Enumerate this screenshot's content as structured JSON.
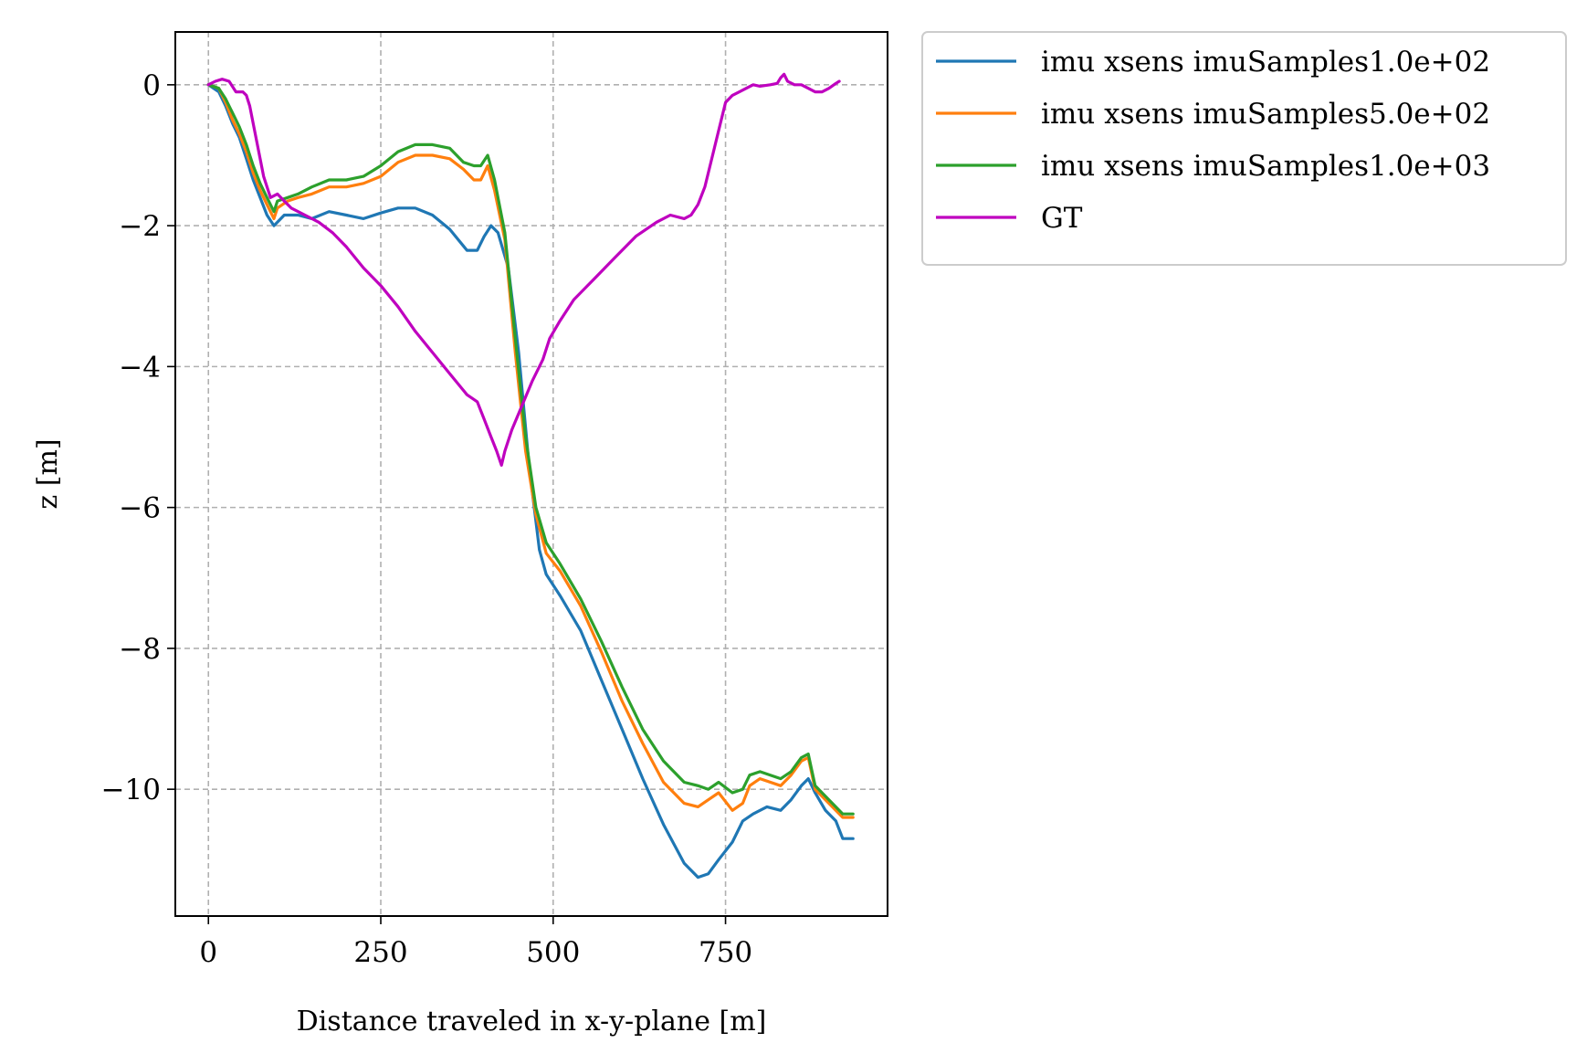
{
  "chart_data": {
    "type": "line",
    "title": "",
    "xlabel": "Distance traveled in x-y-plane [m]",
    "ylabel": "z [m]",
    "xlim": [
      -48,
      985
    ],
    "ylim": [
      -11.8,
      0.75
    ],
    "xticks": [
      0,
      250,
      500,
      750
    ],
    "xtick_labels": [
      "0",
      "250",
      "500",
      "750"
    ],
    "yticks": [
      0,
      -2,
      -4,
      -6,
      -8,
      -10
    ],
    "ytick_labels": [
      "0",
      "−2",
      "−4",
      "−6",
      "−8",
      "−10"
    ],
    "grid": true,
    "legend_position": "outside-upper-right",
    "series": [
      {
        "name": "imu xsens imuSamples1.0e+02",
        "color": "#1f77b4",
        "x": [
          0,
          15,
          25,
          35,
          45,
          55,
          65,
          75,
          85,
          95,
          100,
          110,
          130,
          150,
          175,
          200,
          225,
          250,
          275,
          300,
          325,
          350,
          375,
          390,
          400,
          410,
          420,
          435,
          450,
          465,
          480,
          490,
          510,
          540,
          570,
          600,
          630,
          660,
          690,
          710,
          725,
          740,
          760,
          775,
          790,
          810,
          830,
          845,
          860,
          870,
          880,
          895,
          910,
          920,
          935
        ],
        "y": [
          0,
          -0.1,
          -0.3,
          -0.55,
          -0.75,
          -1.05,
          -1.35,
          -1.6,
          -1.85,
          -2.0,
          -1.95,
          -1.85,
          -1.85,
          -1.9,
          -1.8,
          -1.85,
          -1.9,
          -1.82,
          -1.75,
          -1.75,
          -1.85,
          -2.05,
          -2.35,
          -2.35,
          -2.15,
          -2.0,
          -2.1,
          -2.6,
          -3.8,
          -5.4,
          -6.6,
          -6.95,
          -7.25,
          -7.75,
          -8.45,
          -9.15,
          -9.85,
          -10.5,
          -11.05,
          -11.25,
          -11.2,
          -11.0,
          -10.75,
          -10.45,
          -10.35,
          -10.25,
          -10.3,
          -10.15,
          -9.95,
          -9.85,
          -10.05,
          -10.3,
          -10.45,
          -10.7,
          -10.7
        ]
      },
      {
        "name": "imu xsens imuSamples5.0e+02",
        "color": "#ff7f0e",
        "x": [
          0,
          15,
          25,
          35,
          45,
          55,
          65,
          75,
          85,
          95,
          100,
          115,
          130,
          150,
          175,
          200,
          225,
          250,
          275,
          300,
          325,
          350,
          370,
          385,
          395,
          405,
          415,
          430,
          445,
          460,
          475,
          490,
          510,
          540,
          570,
          600,
          630,
          660,
          690,
          710,
          725,
          740,
          760,
          775,
          785,
          800,
          830,
          845,
          860,
          870,
          880,
          900,
          920,
          935
        ],
        "y": [
          0,
          -0.05,
          -0.25,
          -0.5,
          -0.7,
          -0.95,
          -1.25,
          -1.5,
          -1.7,
          -1.9,
          -1.75,
          -1.65,
          -1.6,
          -1.55,
          -1.45,
          -1.45,
          -1.4,
          -1.3,
          -1.1,
          -1.0,
          -1.0,
          -1.05,
          -1.2,
          -1.35,
          -1.35,
          -1.15,
          -1.5,
          -2.2,
          -3.8,
          -5.2,
          -6.1,
          -6.65,
          -6.9,
          -7.4,
          -8.05,
          -8.75,
          -9.35,
          -9.9,
          -10.2,
          -10.25,
          -10.15,
          -10.05,
          -10.3,
          -10.2,
          -9.95,
          -9.85,
          -9.95,
          -9.8,
          -9.6,
          -9.55,
          -10.0,
          -10.2,
          -10.4,
          -10.4
        ]
      },
      {
        "name": "imu xsens imuSamples1.0e+03",
        "color": "#2ca02c",
        "x": [
          0,
          15,
          25,
          35,
          45,
          55,
          65,
          75,
          85,
          95,
          100,
          115,
          130,
          150,
          175,
          200,
          225,
          250,
          275,
          300,
          325,
          350,
          370,
          385,
          395,
          405,
          415,
          430,
          445,
          460,
          475,
          490,
          510,
          540,
          570,
          600,
          630,
          660,
          690,
          710,
          725,
          740,
          760,
          775,
          785,
          800,
          830,
          845,
          860,
          870,
          880,
          900,
          920,
          935
        ],
        "y": [
          0,
          -0.05,
          -0.2,
          -0.4,
          -0.6,
          -0.85,
          -1.15,
          -1.4,
          -1.6,
          -1.8,
          -1.65,
          -1.6,
          -1.55,
          -1.45,
          -1.35,
          -1.35,
          -1.3,
          -1.15,
          -0.95,
          -0.85,
          -0.85,
          -0.9,
          -1.1,
          -1.15,
          -1.15,
          -1.0,
          -1.35,
          -2.1,
          -3.6,
          -5.0,
          -6.0,
          -6.5,
          -6.8,
          -7.3,
          -7.9,
          -8.55,
          -9.15,
          -9.6,
          -9.9,
          -9.95,
          -10.0,
          -9.9,
          -10.05,
          -10.0,
          -9.8,
          -9.75,
          -9.85,
          -9.75,
          -9.55,
          -9.5,
          -9.95,
          -10.15,
          -10.35,
          -10.35
        ]
      },
      {
        "name": "GT",
        "color": "#bf00bf",
        "x": [
          0,
          10,
          20,
          30,
          40,
          50,
          55,
          60,
          70,
          80,
          90,
          100,
          110,
          120,
          140,
          160,
          180,
          200,
          225,
          250,
          275,
          300,
          325,
          350,
          375,
          390,
          400,
          410,
          418,
          425,
          430,
          440,
          455,
          470,
          485,
          495,
          510,
          530,
          560,
          590,
          620,
          650,
          670,
          690,
          700,
          710,
          720,
          730,
          740,
          750,
          760,
          770,
          780,
          790,
          800,
          815,
          825,
          830,
          835,
          840,
          850,
          860,
          870,
          880,
          890,
          900,
          910,
          915
        ],
        "y": [
          0,
          0.05,
          0.08,
          0.05,
          -0.1,
          -0.1,
          -0.15,
          -0.3,
          -0.8,
          -1.3,
          -1.6,
          -1.55,
          -1.65,
          -1.75,
          -1.85,
          -1.95,
          -2.1,
          -2.3,
          -2.6,
          -2.85,
          -3.15,
          -3.5,
          -3.8,
          -4.1,
          -4.4,
          -4.5,
          -4.75,
          -5.0,
          -5.2,
          -5.4,
          -5.2,
          -4.9,
          -4.55,
          -4.2,
          -3.9,
          -3.6,
          -3.35,
          -3.05,
          -2.75,
          -2.45,
          -2.15,
          -1.95,
          -1.85,
          -1.9,
          -1.85,
          -1.7,
          -1.45,
          -1.05,
          -0.65,
          -0.25,
          -0.15,
          -0.1,
          -0.05,
          0.0,
          -0.02,
          0.0,
          0.02,
          0.1,
          0.15,
          0.05,
          0.0,
          0.0,
          -0.05,
          -0.1,
          -0.1,
          -0.05,
          0.02,
          0.05
        ]
      }
    ]
  }
}
